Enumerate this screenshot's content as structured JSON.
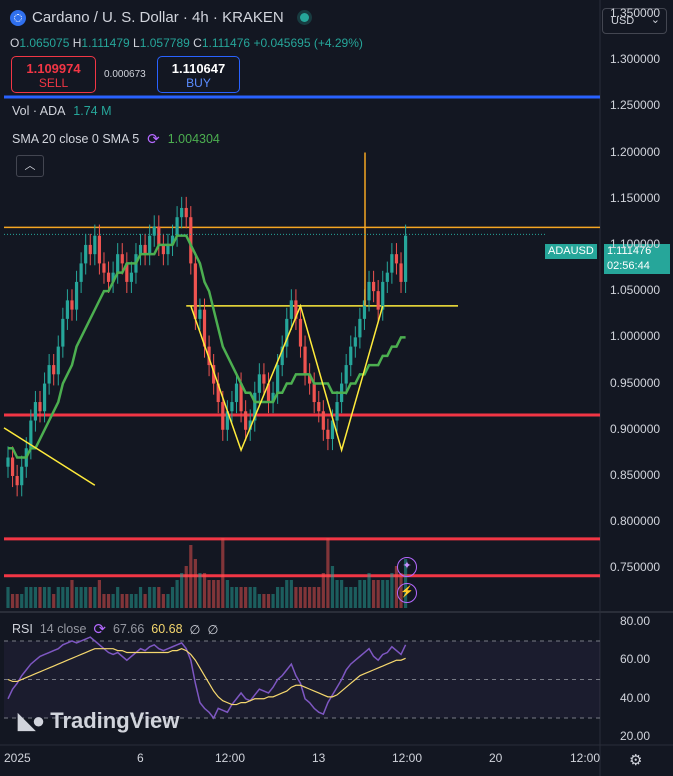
{
  "header": {
    "symbol_title": "Cardano / U. S. Dollar · 4h · KRAKEN",
    "ohlc": [
      {
        "k": "O",
        "v": "1.065075"
      },
      {
        "k": "H",
        "v": "1.111479"
      },
      {
        "k": "L",
        "v": "1.057789"
      },
      {
        "k": "C",
        "v": "1.111476"
      },
      {
        "k": "",
        "v": "+0.045695 (+4.29%)"
      }
    ],
    "sell_price": "1.109974",
    "sell_label": "SELL",
    "spread": "0.000673",
    "buy_price": "1.110647",
    "buy_label": "BUY",
    "currency": "USD"
  },
  "indicators": {
    "vol_label": "Vol · ADA",
    "vol_value": "1.74 M",
    "sma_label": "SMA 20 close 0 SMA 5",
    "sma_value": "1.004304",
    "rsi_label": "RSI",
    "rsi_params": "14 close",
    "rsi_value_a": "67.66",
    "rsi_value_b": "60.68",
    "rsi_empty_1": "∅",
    "rsi_empty_2": "∅"
  },
  "price_tag": {
    "symbol": "ADAUSD",
    "price": "1.111476",
    "countdown": "02:56:44"
  },
  "watermark": "TradingView",
  "colors": {
    "up": "#26a69a",
    "down": "#ef5350",
    "sma": "#4caf50",
    "orange": "#f5a623",
    "yellow": "#ffeb3b",
    "red_line": "#f23645",
    "blue_line": "#2962ff",
    "rsi": "#7e57c2"
  },
  "chart_data": {
    "type": "candlestick",
    "title": "Cardano / U. S. Dollar · 4h · KRAKEN",
    "y_ticks": [
      "1.350000",
      "1.300000",
      "1.250000",
      "1.200000",
      "1.150000",
      "1.100000",
      "1.050000",
      "1.000000",
      "0.950000",
      "0.900000",
      "0.850000",
      "0.800000",
      "0.750000"
    ],
    "ylim": [
      0.705,
      1.365
    ],
    "x_ticks": [
      "2025",
      "6",
      "12:00",
      "13",
      "12:00",
      "20",
      "12:00"
    ],
    "close": [
      0.87,
      0.85,
      0.84,
      0.86,
      0.88,
      0.91,
      0.93,
      0.92,
      0.95,
      0.97,
      0.96,
      0.99,
      1.02,
      1.04,
      1.03,
      1.06,
      1.08,
      1.1,
      1.09,
      1.11,
      1.08,
      1.07,
      1.06,
      1.07,
      1.09,
      1.08,
      1.06,
      1.07,
      1.09,
      1.1,
      1.09,
      1.11,
      1.12,
      1.1,
      1.09,
      1.1,
      1.11,
      1.13,
      1.14,
      1.13,
      1.08,
      1.02,
      1.03,
      0.99,
      0.97,
      0.95,
      0.93,
      0.9,
      0.92,
      0.93,
      0.95,
      0.92,
      0.9,
      0.91,
      0.94,
      0.96,
      0.95,
      0.93,
      0.94,
      0.97,
      0.99,
      1.02,
      1.04,
      1.02,
      0.99,
      0.96,
      0.95,
      0.93,
      0.92,
      0.9,
      0.89,
      0.91,
      0.93,
      0.95,
      0.97,
      0.99,
      1.0,
      1.02,
      1.04,
      1.06,
      1.05,
      1.03,
      1.06,
      1.07,
      1.09,
      1.08,
      1.06,
      1.11
    ],
    "volume": [
      0.3,
      0.2,
      0.2,
      0.2,
      0.3,
      0.3,
      0.3,
      0.3,
      0.3,
      0.3,
      0.2,
      0.3,
      0.3,
      0.3,
      0.4,
      0.3,
      0.3,
      0.3,
      0.3,
      0.3,
      0.4,
      0.2,
      0.2,
      0.2,
      0.3,
      0.2,
      0.2,
      0.2,
      0.2,
      0.3,
      0.2,
      0.3,
      0.3,
      0.3,
      0.2,
      0.2,
      0.3,
      0.4,
      0.5,
      0.6,
      0.9,
      0.7,
      0.5,
      0.5,
      0.4,
      0.4,
      0.4,
      1.0,
      0.4,
      0.3,
      0.3,
      0.3,
      0.3,
      0.3,
      0.3,
      0.2,
      0.2,
      0.2,
      0.2,
      0.3,
      0.3,
      0.4,
      0.4,
      0.3,
      0.3,
      0.3,
      0.3,
      0.3,
      0.3,
      0.5,
      1.0,
      0.6,
      0.4,
      0.4,
      0.3,
      0.3,
      0.3,
      0.4,
      0.4,
      0.5,
      0.4,
      0.4,
      0.4,
      0.4,
      0.5,
      0.6,
      0.5,
      0.7
    ],
    "sma_20": [
      0.88,
      0.88,
      0.87,
      0.87,
      0.87,
      0.88,
      0.88,
      0.89,
      0.9,
      0.91,
      0.92,
      0.93,
      0.95,
      0.96,
      0.97,
      0.99,
      1.0,
      1.01,
      1.02,
      1.03,
      1.04,
      1.05,
      1.05,
      1.06,
      1.07,
      1.07,
      1.08,
      1.08,
      1.08,
      1.09,
      1.09,
      1.09,
      1.09,
      1.1,
      1.1,
      1.1,
      1.1,
      1.11,
      1.11,
      1.11,
      1.1,
      1.09,
      1.08,
      1.06,
      1.05,
      1.03,
      1.01,
      0.99,
      0.98,
      0.97,
      0.96,
      0.95,
      0.94,
      0.94,
      0.93,
      0.93,
      0.93,
      0.93,
      0.93,
      0.94,
      0.94,
      0.95,
      0.95,
      0.96,
      0.96,
      0.96,
      0.96,
      0.95,
      0.95,
      0.95,
      0.95,
      0.94,
      0.94,
      0.94,
      0.94,
      0.95,
      0.95,
      0.96,
      0.96,
      0.97,
      0.97,
      0.97,
      0.98,
      0.98,
      0.99,
      0.99,
      1.0,
      1.0
    ],
    "horizontal_levels": [
      {
        "price": 1.119,
        "color": "#f5a623"
      },
      {
        "price": 1.034,
        "color": "#ffeb3b"
      },
      {
        "price": 0.916,
        "color": "#f23645"
      },
      {
        "price": 0.782,
        "color": "#f23645"
      },
      {
        "price": 0.742,
        "color": "#f23645"
      },
      {
        "price": 1.26,
        "color": "#2962ff"
      }
    ],
    "pattern_points": [
      {
        "bar": 40,
        "price": 1.034
      },
      {
        "bar": 51,
        "price": 0.878
      },
      {
        "bar": 64,
        "price": 1.034
      },
      {
        "bar": 73,
        "price": 0.878
      },
      {
        "bar": 82,
        "price": 1.034
      }
    ],
    "rsi": {
      "y_ticks": [
        "80.00",
        "60.00",
        "40.00",
        "20.00"
      ],
      "ylim": [
        16,
        84
      ],
      "bands": [
        70,
        50,
        30
      ],
      "rsi_values": [
        40,
        45,
        48,
        52,
        55,
        58,
        60,
        62,
        63,
        64,
        65,
        66,
        68,
        69,
        70,
        69,
        70,
        71,
        72,
        70,
        68,
        66,
        64,
        63,
        64,
        62,
        60,
        62,
        64,
        66,
        65,
        67,
        68,
        66,
        65,
        66,
        67,
        68,
        69,
        66,
        60,
        48,
        38,
        35,
        33,
        30,
        35,
        34,
        33,
        37,
        40,
        43,
        40,
        39,
        42,
        45,
        44,
        43,
        46,
        50,
        52,
        55,
        58,
        52,
        48,
        40,
        38,
        35,
        33,
        32,
        38,
        42,
        46,
        50,
        55,
        58,
        60,
        62,
        64,
        66,
        62,
        60,
        63,
        64,
        67,
        65,
        63,
        68
      ],
      "rsi_ma": [
        50,
        49,
        49,
        50,
        51,
        52,
        53,
        54,
        55,
        56,
        57,
        58,
        59,
        60,
        61,
        62,
        63,
        64,
        65,
        66,
        66,
        66,
        66,
        66,
        65,
        65,
        64,
        64,
        64,
        64,
        64,
        64,
        64,
        64,
        64,
        64,
        65,
        65,
        66,
        65,
        63,
        60,
        56,
        52,
        48,
        44,
        41,
        39,
        38,
        37,
        37,
        38,
        38,
        39,
        40,
        40,
        40,
        41,
        41,
        42,
        43,
        44,
        46,
        47,
        47,
        46,
        45,
        44,
        43,
        42,
        41,
        41,
        42,
        44,
        46,
        48,
        50,
        52,
        53,
        54,
        55,
        56,
        57,
        58,
        59,
        60,
        60,
        61
      ]
    }
  }
}
